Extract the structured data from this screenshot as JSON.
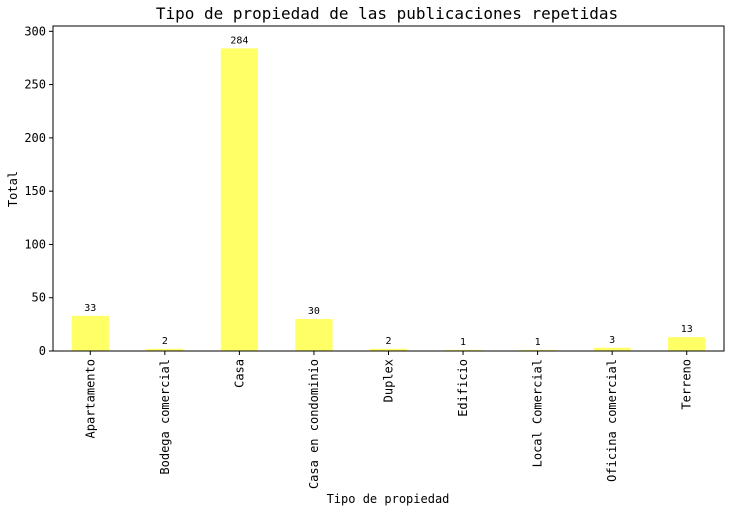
{
  "chart_data": {
    "type": "bar",
    "title": "Tipo de propiedad de las publicaciones repetidas",
    "xlabel": "Tipo de propiedad",
    "ylabel": "Total",
    "categories": [
      "Apartamento",
      "Bodega comercial",
      "Casa",
      "Casa en condominio",
      "Duplex",
      "Edificio",
      "Local Comercial",
      "Oficina comercial",
      "Terreno"
    ],
    "values": [
      33,
      2,
      284,
      30,
      2,
      1,
      1,
      3,
      13
    ],
    "ylim": [
      0,
      305
    ],
    "yticks": [
      0,
      50,
      100,
      150,
      200,
      250,
      300
    ],
    "bar_color": "#ffff66",
    "grid": false,
    "legend": "none"
  }
}
